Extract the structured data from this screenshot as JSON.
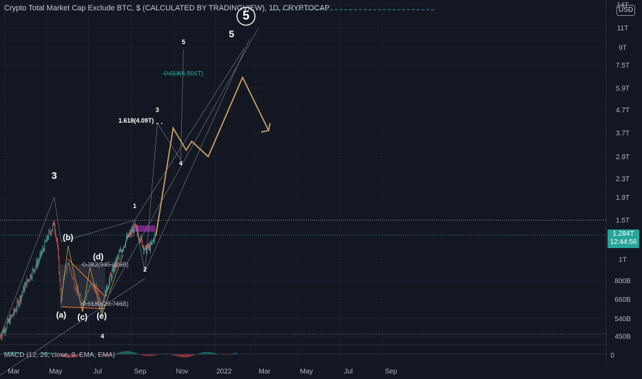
{
  "header": {
    "title": "Crypto Total Market Cap Exclude BTC, $ (CALCULATED BY TRADINGVIEW), 1D, CRYPTOCAP",
    "unit": "USD"
  },
  "price_tag": {
    "value": "1.284T",
    "countdown": "12:44:56"
  },
  "macd": {
    "legend": "MACD (12, 26, close, 9, EMA, EMA)"
  },
  "colors": {
    "background": "#131722",
    "up": "#26a69a",
    "down": "#ef5350",
    "projection": "#c8a165",
    "fib_green": "#26a69a",
    "resistance_zone": "#7b2a8c",
    "triangle": "#ff7b3b"
  },
  "chart_data": {
    "type": "line",
    "scale": "log",
    "y_ticks": [
      "14T",
      "11T",
      "9T",
      "7.5T",
      "5.9T",
      "4.7T",
      "3.7T",
      "2.9T",
      "2.3T",
      "1.9T",
      "1.5T",
      "1T",
      "800B",
      "660B",
      "540B",
      "450B"
    ],
    "x_ticks": [
      "Mar",
      "May",
      "Jul",
      "Sep",
      "Nov",
      "2022",
      "Mar",
      "May",
      "Jul",
      "Sep"
    ],
    "macd_ticks": [
      "0"
    ],
    "price_path": [
      {
        "x": "2021-02-22",
        "y": 450
      },
      {
        "x": "2021-03-15",
        "y": 580
      },
      {
        "x": "2021-04-01",
        "y": 780
      },
      {
        "x": "2021-04-20",
        "y": 1000
      },
      {
        "x": "2021-05-04",
        "y": 1290
      },
      {
        "x": "2021-05-12",
        "y": 1450
      },
      {
        "x": "2021-05-16",
        "y": 1200
      },
      {
        "x": "2021-05-22",
        "y": 660
      },
      {
        "x": "2021-05-27",
        "y": 900
      },
      {
        "x": "2021-06-03",
        "y": 930
      },
      {
        "x": "2021-06-10",
        "y": 780
      },
      {
        "x": "2021-06-22",
        "y": 630
      },
      {
        "x": "2021-07-03",
        "y": 760
      },
      {
        "x": "2021-07-12",
        "y": 740
      },
      {
        "x": "2021-07-20",
        "y": 620
      },
      {
        "x": "2021-08-01",
        "y": 820
      },
      {
        "x": "2021-08-14",
        "y": 1050
      },
      {
        "x": "2021-08-25",
        "y": 1230
      },
      {
        "x": "2021-09-06",
        "y": 1390
      },
      {
        "x": "2021-09-12",
        "y": 1290
      },
      {
        "x": "2021-09-21",
        "y": 1100
      },
      {
        "x": "2021-09-30",
        "y": 1150
      },
      {
        "x": "2021-10-04",
        "y": 1250
      },
      {
        "x": "2021-10-07",
        "y": 1284
      }
    ],
    "projection_path": [
      {
        "x": "2021-10-07",
        "y": 1284
      },
      {
        "x": "2021-11-01",
        "y": 3900
      },
      {
        "x": "2021-11-20",
        "y": 3100
      },
      {
        "x": "2021-11-28",
        "y": 3400
      },
      {
        "x": "2021-12-22",
        "y": 2900
      },
      {
        "x": "2022-02-10",
        "y": 6600
      },
      {
        "x": "2022-03-20",
        "y": 3800
      }
    ],
    "wave_labels": [
      {
        "text": "3",
        "x": "2021-05-12",
        "y": 2300
      },
      {
        "text": "(b)",
        "x": "2021-06-01",
        "y": 1220
      },
      {
        "text": "(a)",
        "x": "2021-05-22",
        "y": 545
      },
      {
        "text": "(c)",
        "x": "2021-06-22",
        "y": 535
      },
      {
        "text": "(d)",
        "x": "2021-07-15",
        "y": 1000
      },
      {
        "text": "(e)",
        "x": "2021-07-20",
        "y": 540
      },
      {
        "text": "4",
        "x": "2021-07-21",
        "y": 440
      },
      {
        "text": "1",
        "x": "2021-09-06",
        "y": 1700
      },
      {
        "text": "2",
        "x": "2021-09-21",
        "y": 880
      },
      {
        "text": "3",
        "x": "2021-10-09",
        "y": 4600
      },
      {
        "text": "4",
        "x": "2021-11-12",
        "y": 2650
      },
      {
        "text": "5",
        "x": "2021-11-16",
        "y": 9300
      },
      {
        "text": "5",
        "x": "2022-01-25",
        "y": 10000
      },
      {
        "text": "5",
        "x": "2022-02-15",
        "y": 12000
      }
    ],
    "fib_levels": [
      {
        "text": "0.618(6.866T)",
        "y": 6866,
        "x_from": "2021-10-17",
        "x_to": "2021-11-21"
      },
      {
        "text": "1.618(4.09T)",
        "y": 4090,
        "x_from": "2021-10-07",
        "x_to": "2021-10-17"
      },
      {
        "text": "0.382(945.226B)",
        "y": 945,
        "x_from": "2021-06-20",
        "x_to": "2021-08-20"
      },
      {
        "text": "0.618(629.746B)",
        "y": 630,
        "x_from": "2021-06-20",
        "x_to": "2021-08-20"
      }
    ],
    "horizontal_levels": [
      1500,
      1284,
      460
    ],
    "resistance_zone": {
      "x_from": "2021-09-05",
      "x_to": "2021-10-06",
      "y_low": 1330,
      "y_high": 1420
    }
  }
}
